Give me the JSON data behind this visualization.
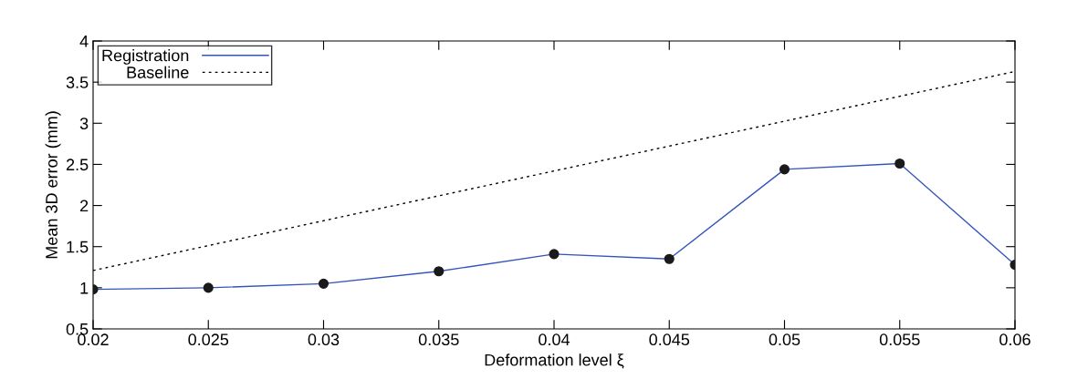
{
  "chart_data": {
    "type": "line",
    "xlabel": "Deformation level ξ",
    "ylabel": "Mean 3D error (mm)",
    "x": [
      0.02,
      0.025,
      0.03,
      0.035,
      0.04,
      0.045,
      0.05,
      0.055,
      0.06
    ],
    "series": [
      {
        "name": "Registration",
        "color": "#3355bb",
        "values": [
          0.98,
          1.0,
          1.05,
          1.2,
          1.41,
          1.35,
          2.44,
          2.51,
          1.28
        ],
        "marker": "circle",
        "line_style": "solid"
      },
      {
        "name": "Baseline",
        "color": "#000000",
        "x": [
          0.02,
          0.06
        ],
        "values": [
          1.21,
          3.63
        ],
        "marker": "none",
        "line_style": "dotted"
      }
    ],
    "xlim": [
      0.02,
      0.06
    ],
    "xticks": [
      0.02,
      0.025,
      0.03,
      0.035,
      0.04,
      0.045,
      0.05,
      0.055,
      0.06
    ],
    "ylim": [
      0.5,
      4
    ],
    "yticks": [
      0.5,
      1,
      1.5,
      2,
      2.5,
      3,
      3.5,
      4
    ],
    "grid": false,
    "legend": "top left"
  }
}
